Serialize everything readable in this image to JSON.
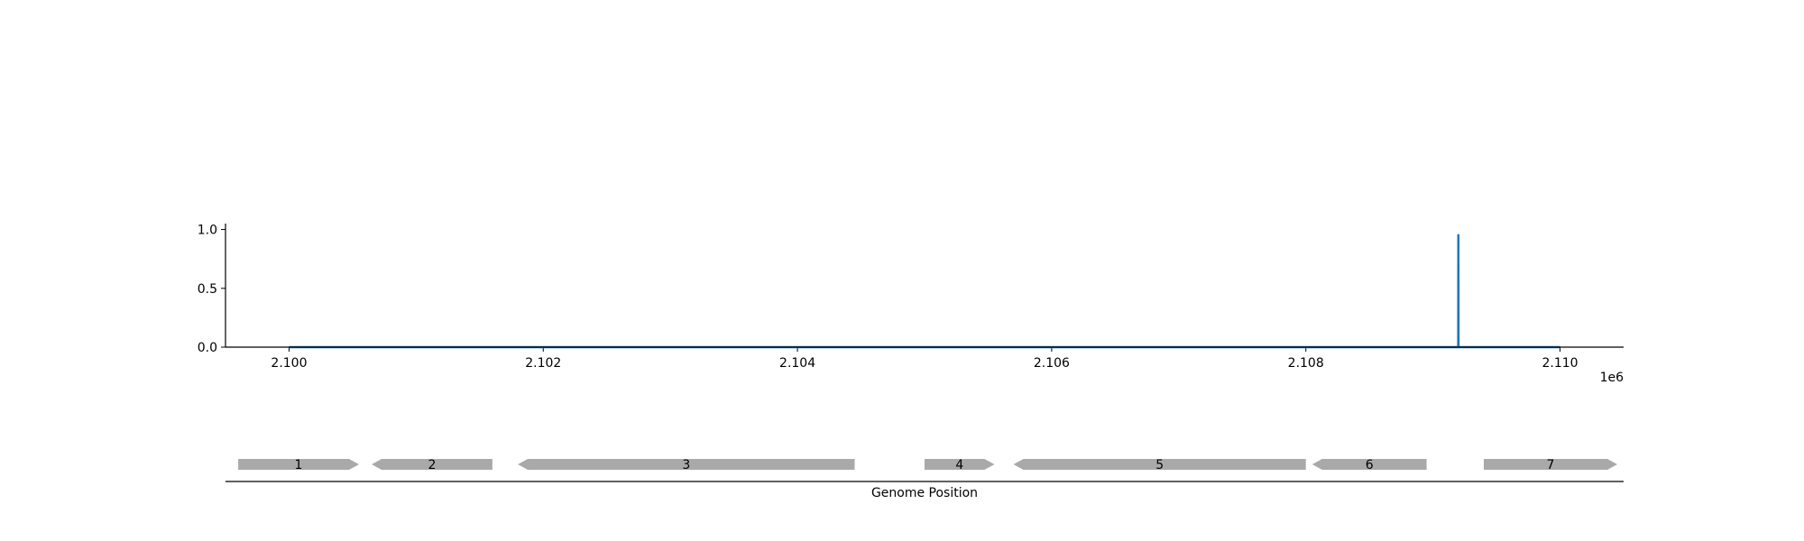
{
  "chart_data": [
    {
      "type": "line",
      "x_range": [
        2099500,
        2110500
      ],
      "ylim": [
        0,
        1.05
      ],
      "x_ticks": [
        2100000,
        2102000,
        2104000,
        2106000,
        2108000,
        2110000
      ],
      "x_tick_labels": [
        "2.100",
        "2.102",
        "2.104",
        "2.106",
        "2.108",
        "2.110"
      ],
      "x_offset_label": "1e6",
      "y_ticks": [
        0.0,
        0.5,
        1.0
      ],
      "y_tick_labels": [
        "0.0",
        "0.5",
        "1.0"
      ],
      "grid": false,
      "series": [
        {
          "color": "#1f77b4",
          "x": [
            2100000,
            2109199,
            2109200,
            2109201,
            2110000
          ],
          "y": [
            0,
            0,
            0.96,
            0,
            0
          ]
        }
      ]
    },
    {
      "type": "gene_map",
      "x_range": [
        2099500,
        2110500
      ],
      "xlabel": "Genome Position",
      "fill_color": "#a9a9a9",
      "genes": [
        {
          "label": "1",
          "start": 2099600,
          "end": 2100550,
          "strand": "+"
        },
        {
          "label": "2",
          "start": 2100650,
          "end": 2101600,
          "strand": "-"
        },
        {
          "label": "3",
          "start": 2101800,
          "end": 2104450,
          "strand": "-"
        },
        {
          "label": "4",
          "start": 2105000,
          "end": 2105550,
          "strand": "+"
        },
        {
          "label": "5",
          "start": 2105700,
          "end": 2108000,
          "strand": "-"
        },
        {
          "label": "6",
          "start": 2108050,
          "end": 2108950,
          "strand": "-"
        },
        {
          "label": "7",
          "start": 2109400,
          "end": 2110450,
          "strand": "+"
        }
      ]
    }
  ]
}
